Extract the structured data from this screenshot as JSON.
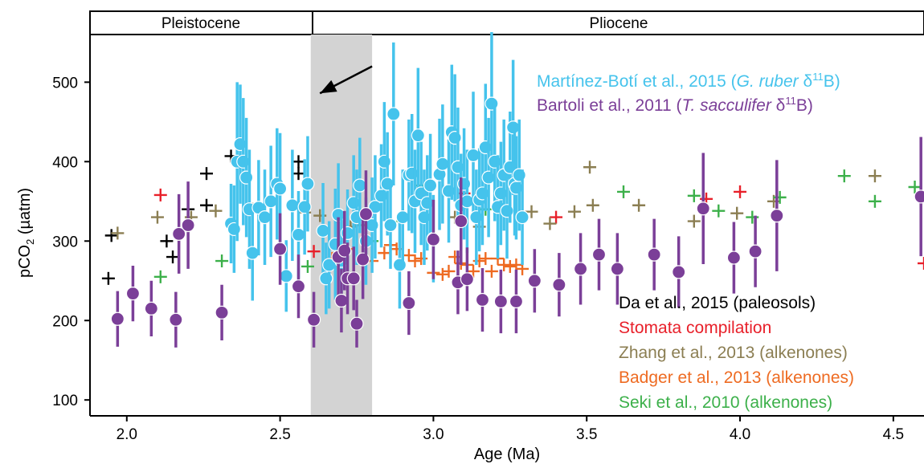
{
  "chart_data": {
    "type": "scatter",
    "xlabel": "Age (Ma)",
    "ylabel_main": "pCO",
    "ylabel_sub": "2",
    "ylabel_unit": " (µatm)",
    "xlim": [
      1.88,
      4.6
    ],
    "ylim": [
      80,
      560
    ],
    "x_ticks": [
      2.0,
      2.5,
      3.0,
      3.5,
      4.0,
      4.5
    ],
    "x_tick_labels": [
      "2.0",
      "2.5",
      "3.0",
      "3.5",
      "4.0",
      "4.5"
    ],
    "y_ticks": [
      100,
      200,
      300,
      400,
      500
    ],
    "y_tick_labels": [
      "100",
      "200",
      "300",
      "400",
      "500"
    ],
    "epochs": [
      {
        "label": "Pleistocene",
        "start": 1.88,
        "end": 2.6
      },
      {
        "label": "Pliocene",
        "start": 2.6,
        "end": 4.6
      }
    ],
    "shaded_band": {
      "start": 2.6,
      "end": 2.8,
      "color": "#d3d3d3"
    },
    "arrow": {
      "from": [
        2.8,
        520
      ],
      "to": [
        2.63,
        486
      ]
    },
    "legend_top": [
      {
        "series": "martinez",
        "text_before": "Martínez-Botí et al., 2015 (",
        "italic": "G. ruber",
        "text_after": " δ",
        "sup": "11",
        "end": "B)",
        "color": "#45c3ec"
      },
      {
        "series": "bartoli",
        "text_before": "Bartoli et al., 2011 (",
        "italic": "T. sacculifer",
        "text_after": " δ",
        "sup": "11",
        "end": "B)",
        "color": "#7b3f98"
      }
    ],
    "legend_bottom": [
      {
        "series": "da",
        "text": "Da et al., 2015 (paleosols)",
        "color": "#000000"
      },
      {
        "series": "stomata",
        "text": "Stomata compilation",
        "color": "#e8202a"
      },
      {
        "series": "zhang",
        "text": "Zhang et al., 2013 (alkenones)",
        "color": "#8b7e52"
      },
      {
        "series": "badger",
        "text": "Badger et al., 2013 (alkenones)",
        "color": "#ee6b22"
      },
      {
        "series": "seki",
        "text": "Seki et al., 2010 (alkenones)",
        "color": "#3cb04a"
      }
    ],
    "series": [
      {
        "key": "martinez",
        "name": "Martínez-Botí et al., 2015 (G. ruber δ11B)",
        "marker": "circle-white-edge",
        "color": "#45c3ec",
        "points": [
          [
            2.34,
            322,
            50
          ],
          [
            2.35,
            315,
            55
          ],
          [
            2.36,
            400,
            100
          ],
          [
            2.37,
            422,
            75
          ],
          [
            2.38,
            400,
            80
          ],
          [
            2.39,
            380,
            75
          ],
          [
            2.4,
            340,
            75
          ],
          [
            2.41,
            285,
            60
          ],
          [
            2.43,
            342,
            60
          ],
          [
            2.45,
            330,
            60
          ],
          [
            2.47,
            350,
            70
          ],
          [
            2.49,
            372,
            70
          ],
          [
            2.5,
            366,
            70
          ],
          [
            2.52,
            256,
            45
          ],
          [
            2.54,
            345,
            70
          ],
          [
            2.56,
            308,
            55
          ],
          [
            2.58,
            343,
            60
          ],
          [
            2.59,
            372,
            60
          ],
          [
            2.64,
            313,
            60
          ],
          [
            2.65,
            253,
            45
          ],
          [
            2.66,
            270,
            55
          ],
          [
            2.68,
            296,
            70
          ],
          [
            2.69,
            333,
            65
          ],
          [
            2.7,
            275,
            55
          ],
          [
            2.72,
            310,
            55
          ],
          [
            2.74,
            348,
            60
          ],
          [
            2.75,
            330,
            60
          ],
          [
            2.76,
            370,
            60
          ],
          [
            2.78,
            300,
            55
          ],
          [
            2.8,
            320,
            60
          ],
          [
            2.81,
            343,
            65
          ],
          [
            2.83,
            357,
            65
          ],
          [
            2.84,
            400,
            75
          ],
          [
            2.85,
            372,
            65
          ],
          [
            2.86,
            320,
            55
          ],
          [
            2.87,
            460,
            90
          ],
          [
            2.89,
            270,
            55
          ],
          [
            2.9,
            330,
            60
          ],
          [
            2.92,
            383,
            70
          ],
          [
            2.93,
            385,
            75
          ],
          [
            2.94,
            350,
            65
          ],
          [
            2.95,
            433,
            85
          ],
          [
            2.96,
            360,
            65
          ],
          [
            2.97,
            330,
            60
          ],
          [
            2.98,
            348,
            60
          ],
          [
            2.99,
            370,
            65
          ],
          [
            3.0,
            303,
            55
          ],
          [
            3.02,
            384,
            70
          ],
          [
            3.03,
            397,
            75
          ],
          [
            3.05,
            363,
            65
          ],
          [
            3.06,
            437,
            85
          ],
          [
            3.07,
            430,
            80
          ],
          [
            3.08,
            393,
            75
          ],
          [
            3.09,
            345,
            65
          ],
          [
            3.1,
            372,
            70
          ],
          [
            3.11,
            350,
            65
          ],
          [
            3.13,
            408,
            80
          ],
          [
            3.14,
            330,
            60
          ],
          [
            3.15,
            352,
            65
          ],
          [
            3.16,
            360,
            65
          ],
          [
            3.17,
            418,
            80
          ],
          [
            3.18,
            380,
            75
          ],
          [
            3.19,
            473,
            90
          ],
          [
            3.2,
            400,
            75
          ],
          [
            3.21,
            343,
            65
          ],
          [
            3.22,
            360,
            65
          ],
          [
            3.23,
            383,
            70
          ],
          [
            3.24,
            338,
            60
          ],
          [
            3.25,
            393,
            70
          ],
          [
            3.26,
            443,
            85
          ],
          [
            3.265,
            372,
            65
          ],
          [
            3.27,
            367,
            65
          ],
          [
            3.28,
            383,
            70
          ],
          [
            3.29,
            330,
            60
          ]
        ]
      },
      {
        "key": "bartoli",
        "name": "Bartoli et al., 2011 (T. sacculifer δ11B)",
        "marker": "circle-white-edge",
        "color": "#7b3f98",
        "points": [
          [
            1.97,
            202,
            35
          ],
          [
            2.02,
            234,
            35
          ],
          [
            2.08,
            215,
            35
          ],
          [
            2.16,
            201,
            35
          ],
          [
            2.17,
            309,
            50
          ],
          [
            2.2,
            320,
            55
          ],
          [
            2.31,
            210,
            35
          ],
          [
            2.5,
            290,
            45
          ],
          [
            2.56,
            243,
            40
          ],
          [
            2.61,
            201,
            35
          ],
          [
            2.69,
            280,
            50
          ],
          [
            2.7,
            225,
            40
          ],
          [
            2.71,
            288,
            50
          ],
          [
            2.72,
            253,
            45
          ],
          [
            2.74,
            253,
            40
          ],
          [
            2.75,
            196,
            30
          ],
          [
            2.77,
            277,
            50
          ],
          [
            2.78,
            334,
            55
          ],
          [
            2.92,
            222,
            40
          ],
          [
            3.0,
            302,
            50
          ],
          [
            3.08,
            248,
            40
          ],
          [
            3.09,
            325,
            55
          ],
          [
            3.11,
            252,
            40
          ],
          [
            3.16,
            226,
            40
          ],
          [
            3.22,
            224,
            40
          ],
          [
            3.27,
            224,
            40
          ],
          [
            3.33,
            250,
            40
          ],
          [
            3.41,
            245,
            40
          ],
          [
            3.48,
            265,
            45
          ],
          [
            3.54,
            283,
            45
          ],
          [
            3.6,
            265,
            45
          ],
          [
            3.72,
            283,
            45
          ],
          [
            3.8,
            261,
            45
          ],
          [
            3.88,
            341,
            70
          ],
          [
            3.98,
            279,
            45
          ],
          [
            4.05,
            287,
            45
          ],
          [
            4.12,
            332,
            70
          ],
          [
            4.59,
            356,
            75
          ]
        ]
      },
      {
        "key": "da",
        "name": "Da et al., 2015 (paleosols)",
        "marker": "plus",
        "color": "#000000",
        "points": [
          [
            1.94,
            253
          ],
          [
            1.95,
            307
          ],
          [
            2.13,
            300
          ],
          [
            2.15,
            280
          ],
          [
            2.2,
            340
          ],
          [
            2.26,
            385
          ],
          [
            2.26,
            345
          ],
          [
            2.34,
            407
          ],
          [
            2.56,
            400
          ],
          [
            2.56,
            385
          ]
        ]
      },
      {
        "key": "stomata",
        "name": "Stomata compilation",
        "marker": "plus",
        "color": "#e8202a",
        "points": [
          [
            2.11,
            358
          ],
          [
            2.61,
            287
          ],
          [
            3.1,
            360
          ],
          [
            3.4,
            330
          ],
          [
            3.89,
            353
          ],
          [
            4.0,
            362
          ],
          [
            4.6,
            272
          ]
        ]
      },
      {
        "key": "zhang",
        "name": "Zhang et al., 2013 (alkenones)",
        "marker": "plus",
        "color": "#8b7e52",
        "points": [
          [
            1.97,
            310
          ],
          [
            2.1,
            330
          ],
          [
            2.21,
            330
          ],
          [
            2.29,
            338
          ],
          [
            2.41,
            340
          ],
          [
            2.58,
            336
          ],
          [
            2.63,
            332
          ],
          [
            2.73,
            318
          ],
          [
            2.76,
            320
          ],
          [
            3.07,
            330
          ],
          [
            3.15,
            318
          ],
          [
            3.32,
            337
          ],
          [
            3.38,
            322
          ],
          [
            3.46,
            337
          ],
          [
            3.51,
            393
          ],
          [
            3.52,
            345
          ],
          [
            3.67,
            345
          ],
          [
            3.85,
            325
          ],
          [
            3.99,
            335
          ],
          [
            4.11,
            350
          ],
          [
            4.44,
            382
          ]
        ]
      },
      {
        "key": "badger",
        "name": "Badger et al., 2013 (alkenones)",
        "marker": "plus",
        "color": "#ee6b22",
        "points": [
          [
            2.67,
            278
          ],
          [
            2.72,
            290
          ],
          [
            2.8,
            275
          ],
          [
            2.84,
            285
          ],
          [
            2.86,
            295
          ],
          [
            2.88,
            290
          ],
          [
            2.92,
            282
          ],
          [
            2.94,
            275
          ],
          [
            2.96,
            278
          ],
          [
            3.0,
            260
          ],
          [
            3.03,
            258
          ],
          [
            3.05,
            262
          ],
          [
            3.07,
            280
          ],
          [
            3.09,
            272
          ],
          [
            3.11,
            270
          ],
          [
            3.13,
            262
          ],
          [
            3.15,
            275
          ],
          [
            3.17,
            278
          ],
          [
            3.19,
            262
          ],
          [
            3.21,
            278
          ],
          [
            3.23,
            270
          ],
          [
            3.25,
            268
          ],
          [
            3.27,
            270
          ],
          [
            3.29,
            265
          ]
        ]
      },
      {
        "key": "seki",
        "name": "Seki et al., 2010 (alkenones)",
        "marker": "plus",
        "color": "#3cb04a",
        "points": [
          [
            2.11,
            255
          ],
          [
            2.31,
            275
          ],
          [
            2.59,
            268
          ],
          [
            2.8,
            300
          ],
          [
            2.9,
            325
          ],
          [
            2.96,
            370
          ],
          [
            3.1,
            345
          ],
          [
            3.17,
            340
          ],
          [
            3.23,
            340
          ],
          [
            3.62,
            362
          ],
          [
            3.85,
            357
          ],
          [
            3.93,
            338
          ],
          [
            4.04,
            330
          ],
          [
            4.13,
            355
          ],
          [
            4.34,
            382
          ],
          [
            4.44,
            350
          ],
          [
            4.57,
            368
          ]
        ]
      }
    ]
  }
}
